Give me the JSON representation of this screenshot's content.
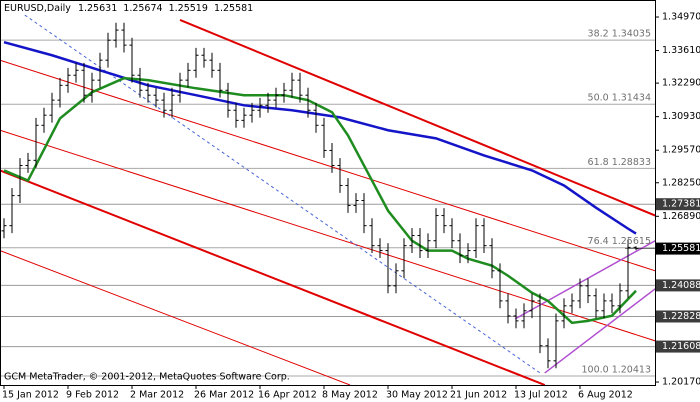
{
  "chart_data": {
    "type": "ohlc",
    "symbol": "EURUSD,Daily",
    "footer": "GCM MetaTrader, © 2001-2012, MetaQuotes Software Corp.",
    "categories": [
      "15 Jan 2012",
      null,
      null,
      null,
      null,
      null,
      null,
      null,
      "9 Feb 2012",
      null,
      null,
      null,
      null,
      null,
      null,
      null,
      "2 Mar 2012",
      null,
      null,
      null,
      null,
      null,
      null,
      null,
      "26 Mar 2012",
      null,
      null,
      null,
      null,
      null,
      null,
      null,
      "16 Apr 2012",
      null,
      null,
      null,
      null,
      null,
      null,
      null,
      "8 May 2012",
      null,
      null,
      null,
      null,
      null,
      null,
      null,
      "30 May 2012",
      null,
      null,
      null,
      null,
      null,
      null,
      null,
      "21 Jun 2012",
      null,
      null,
      null,
      null,
      null,
      null,
      null,
      "13 Jul 2012",
      null,
      null,
      null,
      null,
      null,
      null,
      null,
      "6 Aug 2012",
      null,
      null,
      null,
      null,
      null,
      null,
      null
    ],
    "bars": [
      [
        1.263,
        1.2681,
        1.26,
        1.2651
      ],
      [
        1.2651,
        1.2803,
        1.2621,
        1.2773
      ],
      [
        1.2773,
        1.2925,
        1.2743,
        1.2895
      ],
      [
        1.2895,
        1.2946,
        1.2865,
        1.2916
      ],
      [
        1.2916,
        1.3088,
        1.2886,
        1.3058
      ],
      [
        1.3058,
        1.3129,
        1.3028,
        1.3099
      ],
      [
        1.3099,
        1.319,
        1.3069,
        1.316
      ],
      [
        1.316,
        1.325,
        1.313,
        1.322
      ],
      [
        1.322,
        1.3291,
        1.319,
        1.3261
      ],
      [
        1.3261,
        1.3311,
        1.3231,
        1.3281
      ],
      [
        1.3281,
        1.3311,
        1.315,
        1.318
      ],
      [
        1.318,
        1.3271,
        1.315,
        1.3241
      ],
      [
        1.3241,
        1.3352,
        1.3211,
        1.3322
      ],
      [
        1.3322,
        1.3433,
        1.3292,
        1.3403
      ],
      [
        1.3403,
        1.3474,
        1.3373,
        1.3444
      ],
      [
        1.3444,
        1.3474,
        1.3353,
        1.3383
      ],
      [
        1.3383,
        1.3413,
        1.3231,
        1.3261
      ],
      [
        1.3261,
        1.3291,
        1.317,
        1.32
      ],
      [
        1.32,
        1.323,
        1.315,
        1.318
      ],
      [
        1.318,
        1.321,
        1.313,
        1.316
      ],
      [
        1.316,
        1.319,
        1.3089,
        1.3119
      ],
      [
        1.3119,
        1.321,
        1.3089,
        1.318
      ],
      [
        1.318,
        1.3271,
        1.315,
        1.3241
      ],
      [
        1.3241,
        1.3311,
        1.3211,
        1.3281
      ],
      [
        1.3281,
        1.3372,
        1.3251,
        1.3342
      ],
      [
        1.3342,
        1.3372,
        1.3292,
        1.3322
      ],
      [
        1.3322,
        1.3352,
        1.3251,
        1.3281
      ],
      [
        1.3281,
        1.3311,
        1.317,
        1.32
      ],
      [
        1.32,
        1.323,
        1.3089,
        1.3119
      ],
      [
        1.3119,
        1.3149,
        1.3048,
        1.3078
      ],
      [
        1.3078,
        1.3129,
        1.3048,
        1.3099
      ],
      [
        1.3099,
        1.3149,
        1.3069,
        1.3119
      ],
      [
        1.3119,
        1.3169,
        1.3089,
        1.3139
      ],
      [
        1.3139,
        1.319,
        1.3109,
        1.316
      ],
      [
        1.316,
        1.321,
        1.313,
        1.318
      ],
      [
        1.318,
        1.323,
        1.315,
        1.32
      ],
      [
        1.32,
        1.3271,
        1.317,
        1.3241
      ],
      [
        1.3241,
        1.3271,
        1.315,
        1.318
      ],
      [
        1.318,
        1.321,
        1.3089,
        1.3119
      ],
      [
        1.3119,
        1.3149,
        1.3028,
        1.3058
      ],
      [
        1.3058,
        1.3088,
        1.2926,
        1.2956
      ],
      [
        1.2956,
        1.2986,
        1.2865,
        1.2895
      ],
      [
        1.2895,
        1.2925,
        1.2784,
        1.2814
      ],
      [
        1.2814,
        1.2844,
        1.2703,
        1.2733
      ],
      [
        1.2733,
        1.2783,
        1.2703,
        1.2753
      ],
      [
        1.2753,
        1.2783,
        1.2621,
        1.2651
      ],
      [
        1.2651,
        1.2681,
        1.254,
        1.257
      ],
      [
        1.257,
        1.26,
        1.252,
        1.255
      ],
      [
        1.255,
        1.258,
        1.2377,
        1.2407
      ],
      [
        1.2407,
        1.2498,
        1.2377,
        1.2468
      ],
      [
        1.2468,
        1.26,
        1.2438,
        1.257
      ],
      [
        1.257,
        1.2641,
        1.254,
        1.2611
      ],
      [
        1.2611,
        1.2641,
        1.252,
        1.255
      ],
      [
        1.255,
        1.262,
        1.252,
        1.259
      ],
      [
        1.259,
        1.2722,
        1.256,
        1.2692
      ],
      [
        1.2692,
        1.2722,
        1.2621,
        1.2651
      ],
      [
        1.2651,
        1.2681,
        1.256,
        1.259
      ],
      [
        1.259,
        1.262,
        1.2499,
        1.2529
      ],
      [
        1.2529,
        1.258,
        1.2499,
        1.255
      ],
      [
        1.255,
        1.2681,
        1.252,
        1.2651
      ],
      [
        1.2651,
        1.2681,
        1.254,
        1.257
      ],
      [
        1.257,
        1.26,
        1.2438,
        1.2468
      ],
      [
        1.2468,
        1.2498,
        1.2316,
        1.2346
      ],
      [
        1.2346,
        1.2376,
        1.2255,
        1.2285
      ],
      [
        1.2285,
        1.2315,
        1.2235,
        1.2265
      ],
      [
        1.2265,
        1.2336,
        1.2235,
        1.2306
      ],
      [
        1.2306,
        1.2376,
        1.2276,
        1.2346
      ],
      [
        1.2346,
        1.2376,
        1.2134,
        1.2164
      ],
      [
        1.2164,
        1.2194,
        1.2073,
        1.2103
      ],
      [
        1.2103,
        1.2295,
        1.2073,
        1.2265
      ],
      [
        1.2265,
        1.2356,
        1.2235,
        1.2326
      ],
      [
        1.2326,
        1.2376,
        1.2296,
        1.2346
      ],
      [
        1.2346,
        1.2437,
        1.2316,
        1.2407
      ],
      [
        1.2407,
        1.2437,
        1.2337,
        1.2367
      ],
      [
        1.2367,
        1.2397,
        1.2276,
        1.2306
      ],
      [
        1.2306,
        1.2376,
        1.2276,
        1.2346
      ],
      [
        1.2346,
        1.2376,
        1.2296,
        1.2326
      ],
      [
        1.2326,
        1.2417,
        1.2296,
        1.2387
      ],
      [
        1.2387,
        1.2593,
        1.2357,
        1.2563
      ],
      [
        1.25631,
        1.25674,
        1.25519,
        1.25581
      ]
    ],
    "bar_color": "#000000",
    "moving_averages": [
      {
        "color": "#1414c8",
        "x": [
          0,
          6,
          12,
          18,
          24,
          30,
          36,
          42,
          48,
          54,
          60,
          66,
          70,
          74,
          78,
          79
        ],
        "values": [
          1.3395,
          1.3342,
          1.3281,
          1.322,
          1.318,
          1.3139,
          1.3119,
          1.309,
          1.3038,
          1.3005,
          1.2936,
          1.2875,
          1.2814,
          1.2724,
          1.2639,
          1.2619
        ]
      },
      {
        "color": "#1e8c1e",
        "x": [
          0,
          3,
          7,
          11,
          15,
          18,
          24,
          30,
          35,
          38,
          41,
          43,
          46,
          48,
          51,
          53,
          56,
          58,
          61,
          63,
          66,
          68,
          71,
          73,
          76,
          79
        ],
        "values": [
          1.2875,
          1.2834,
          1.3086,
          1.3192,
          1.3249,
          1.3241,
          1.3208,
          1.318,
          1.318,
          1.316,
          1.3111,
          1.3017,
          1.2834,
          1.2712,
          1.259,
          1.255,
          1.255,
          1.2517,
          1.2489,
          1.2448,
          1.2379,
          1.2346,
          1.2257,
          1.2265,
          1.2286,
          1.2387
        ]
      }
    ],
    "trendlines": [
      {
        "color": "#e00000",
        "width": 2,
        "x": [
          22,
          81.4
        ],
        "values": [
          1.3485,
          1.2692
        ]
      },
      {
        "color": "#e00000",
        "width": 1,
        "x": [
          -0.5,
          81.4
        ],
        "values": [
          1.3322,
          1.2468
        ]
      },
      {
        "color": "#e00000",
        "width": 1,
        "x": [
          -0.5,
          81.4
        ],
        "values": [
          1.3038,
          1.2184
        ]
      },
      {
        "color": "#e00000",
        "width": 2,
        "x": [
          -0.5,
          67.6
        ],
        "values": [
          1.2875,
          1.2005
        ]
      },
      {
        "color": "#e00000",
        "width": 1,
        "x": [
          -0.5,
          43.25
        ],
        "values": [
          1.255,
          1.2005
        ]
      },
      {
        "color": "#b04fd0",
        "width": 1.5,
        "x": [
          63.9,
          81.4
        ],
        "values": [
          1.2273,
          1.259
        ]
      },
      {
        "color": "#b04fd0",
        "width": 1.5,
        "x": [
          67.6,
          81.4
        ],
        "values": [
          1.2054,
          1.2395
        ]
      },
      {
        "color": "#4a66d8",
        "width": 1,
        "dash": true,
        "x": [
          2.6,
          67
        ],
        "values": [
          1.3505,
          1.2054
        ]
      }
    ],
    "fibonacci": [
      {
        "label": "38.2 1.34035",
        "value": 1.34035
      },
      {
        "label": "50.0 1.31434",
        "value": 1.31434
      },
      {
        "label": "61.8 1.28833",
        "value": 1.28833
      },
      {
        "label": "76.4 1.25615",
        "value": 1.25615
      },
      {
        "label": "100.0 1.20413",
        "value": 1.20413
      }
    ],
    "levels": [
      1.27381,
      1.24088,
      1.22828,
      1.21608
    ],
    "ylim": [
      1.2005,
      1.3566
    ],
    "yticks": [
      {
        "value": 1.3497,
        "label": "1.34970"
      },
      {
        "value": 1.3361,
        "label": "1.33610"
      },
      {
        "value": 1.3229,
        "label": "1.32290"
      },
      {
        "value": 1.3093,
        "label": "1.30930"
      },
      {
        "value": 1.2957,
        "label": "1.29570"
      },
      {
        "value": 1.2825,
        "label": "1.28250"
      },
      {
        "value": 1.2689,
        "label": "1.26890"
      },
      {
        "value": 1.2017,
        "label": "1.20170"
      }
    ]
  }
}
